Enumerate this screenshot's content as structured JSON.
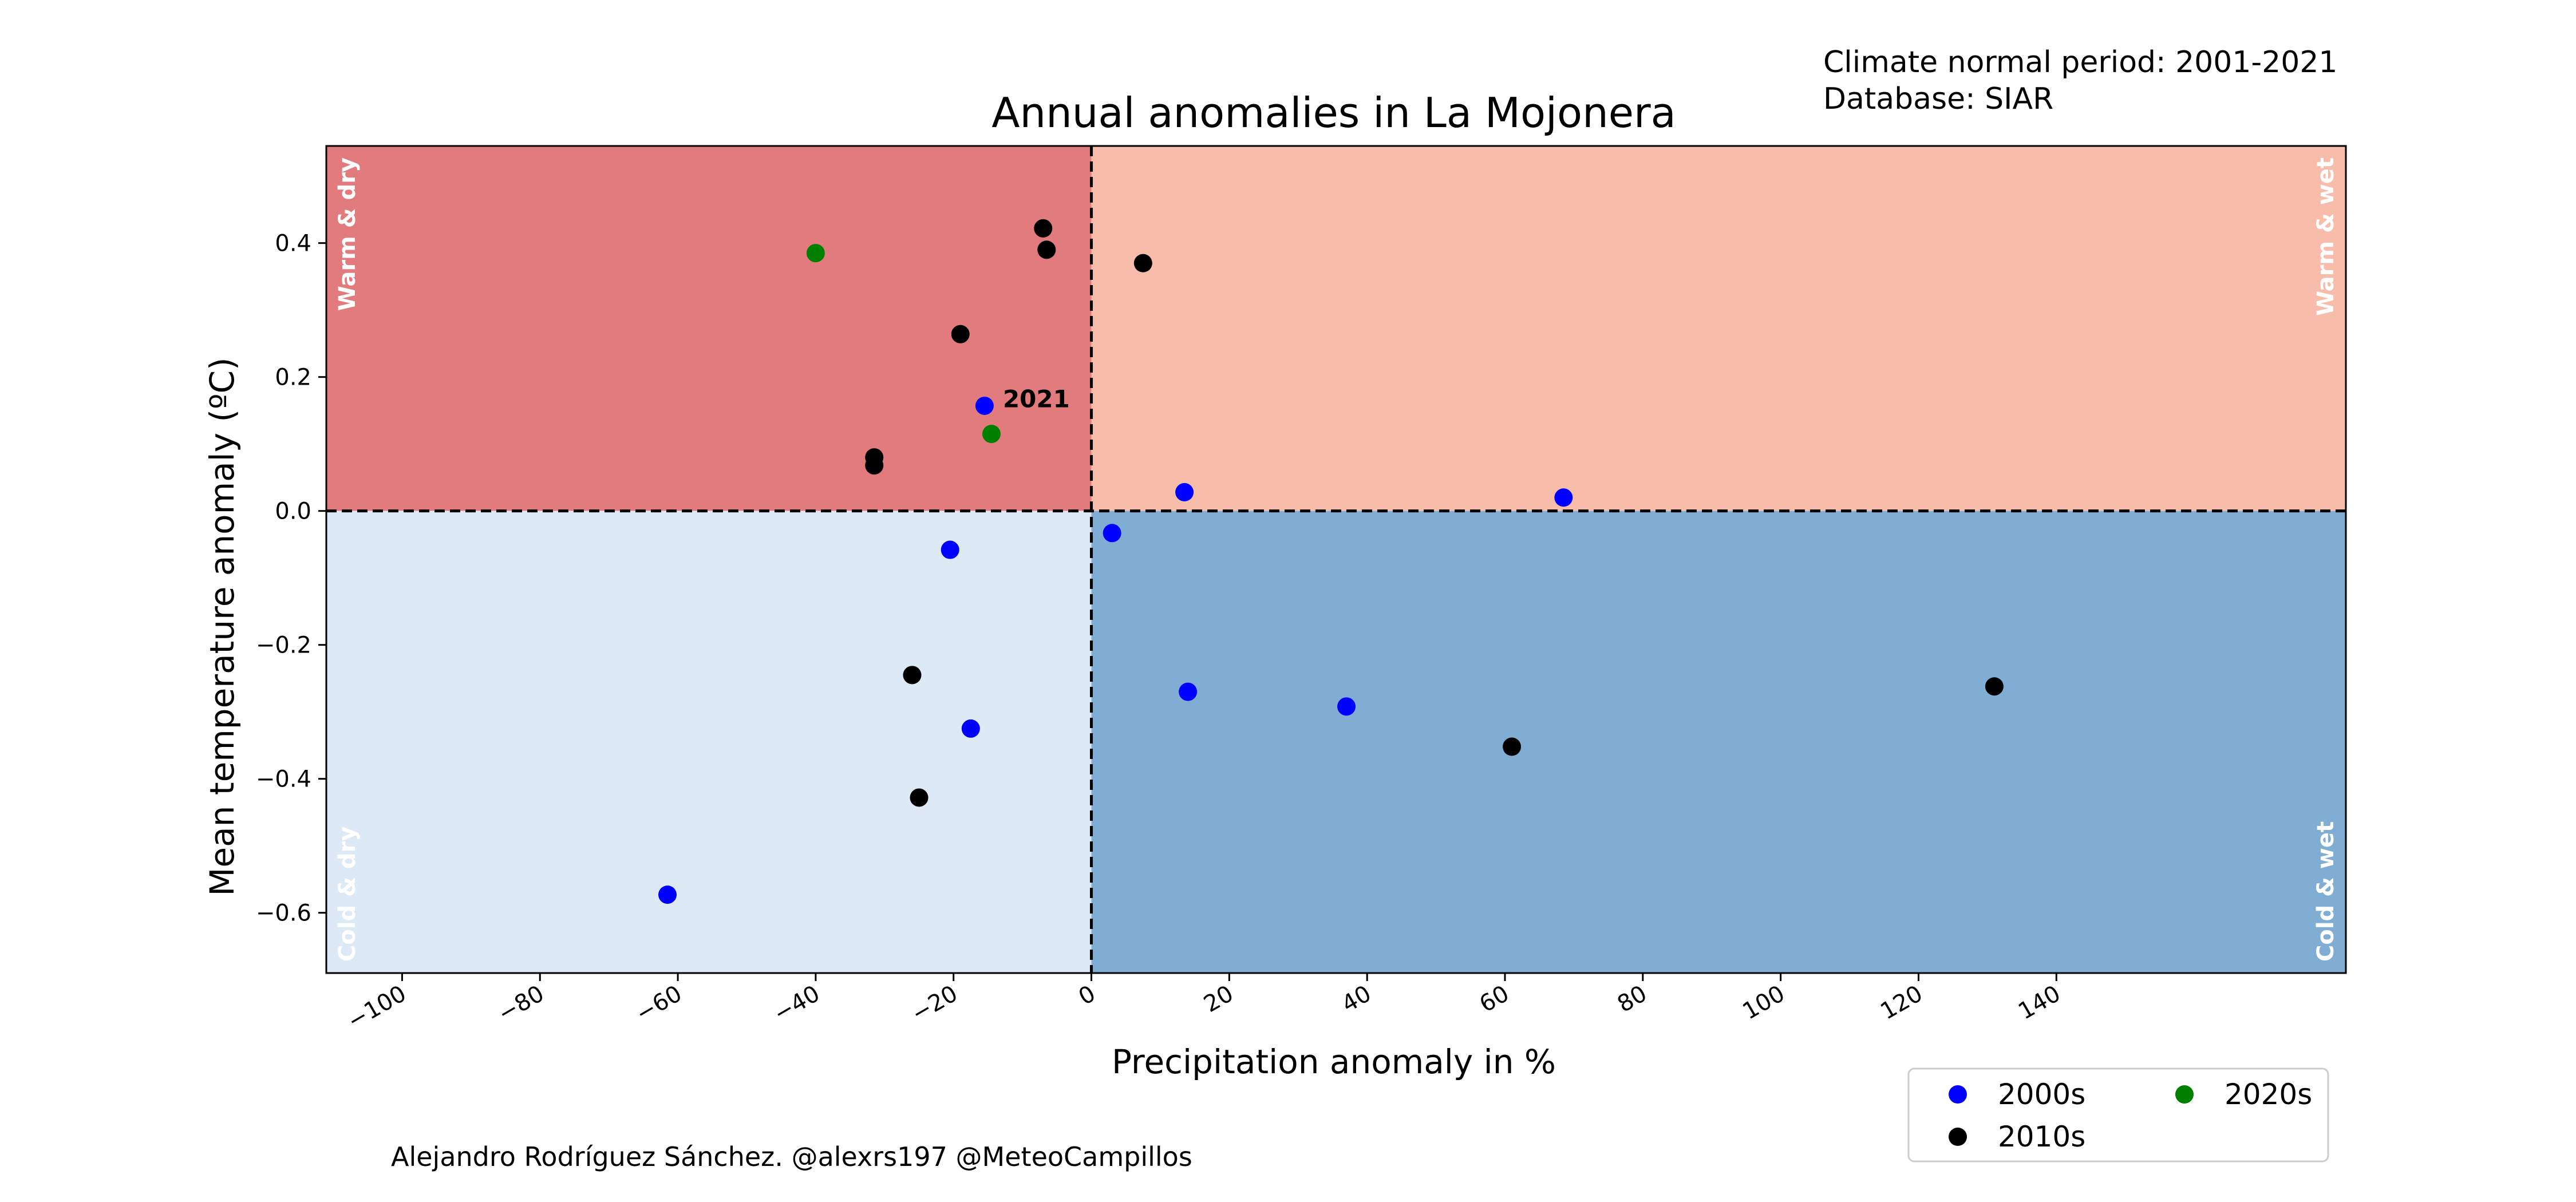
{
  "chart_data": {
    "type": "scatter",
    "title": "Annual anomalies in La Mojonera",
    "xlabel": "Precipitation anomaly in %",
    "ylabel": "Mean temperature anomaly (ºC)",
    "xlim": [
      -111,
      182
    ],
    "ylim": [
      -0.69,
      0.545
    ],
    "x_ticks": [
      -100,
      -80,
      -60,
      -40,
      -20,
      0,
      20,
      40,
      60,
      80,
      100,
      120,
      140
    ],
    "x_tick_labels": [
      "−100",
      "−80",
      "−60",
      "−40",
      "−20",
      "0",
      "20",
      "40",
      "60",
      "80",
      "100",
      "120",
      "140"
    ],
    "y_ticks": [
      -0.6,
      -0.4,
      -0.2,
      0.0,
      0.2,
      0.4
    ],
    "y_tick_labels": [
      "−0.6",
      "−0.4",
      "−0.2",
      "0.0",
      "0.2",
      "0.4"
    ],
    "info_lines": [
      "Climate normal period: 2001-2021",
      "Database: SIAR"
    ],
    "credit": "Alejandro Rodríguez Sánchez. @alexrs197 @MeteoCampillos",
    "quadrants": {
      "warm_dry": {
        "label": "Warm & dry",
        "color": "#e27b7d"
      },
      "warm_wet": {
        "label": "Warm & wet",
        "color": "#f8bcaa"
      },
      "cold_dry": {
        "label": "Cold & dry",
        "color": "#dde9f5"
      },
      "cold_wet": {
        "label": "Cold & wet",
        "color": "#80add4"
      }
    },
    "annotation": {
      "text": "2021",
      "x": -14.5,
      "y": 0.16
    },
    "legend_placement": "lower-right, below plot",
    "series": [
      {
        "name": "2000s",
        "color": "#0000ff",
        "points": [
          {
            "x": -15.5,
            "y": 0.157
          },
          {
            "x": 13.5,
            "y": 0.028
          },
          {
            "x": 68.5,
            "y": 0.02
          },
          {
            "x": -20.5,
            "y": -0.058
          },
          {
            "x": 3.0,
            "y": -0.033
          },
          {
            "x": 14.0,
            "y": -0.27
          },
          {
            "x": 37.0,
            "y": -0.292
          },
          {
            "x": -17.5,
            "y": -0.325
          },
          {
            "x": -61.5,
            "y": -0.573
          }
        ]
      },
      {
        "name": "2010s",
        "color": "#000000",
        "points": [
          {
            "x": -7.0,
            "y": 0.422
          },
          {
            "x": -6.5,
            "y": 0.39
          },
          {
            "x": 7.5,
            "y": 0.37
          },
          {
            "x": -19.0,
            "y": 0.264
          },
          {
            "x": -31.5,
            "y": 0.08
          },
          {
            "x": -31.5,
            "y": 0.068
          },
          {
            "x": -26.0,
            "y": -0.245
          },
          {
            "x": -25.0,
            "y": -0.428
          },
          {
            "x": 61.0,
            "y": -0.352
          },
          {
            "x": 131.0,
            "y": -0.262
          }
        ]
      },
      {
        "name": "2020s",
        "color": "#008000",
        "points": [
          {
            "x": -40.0,
            "y": 0.385
          },
          {
            "x": -14.5,
            "y": 0.115
          }
        ]
      }
    ]
  }
}
